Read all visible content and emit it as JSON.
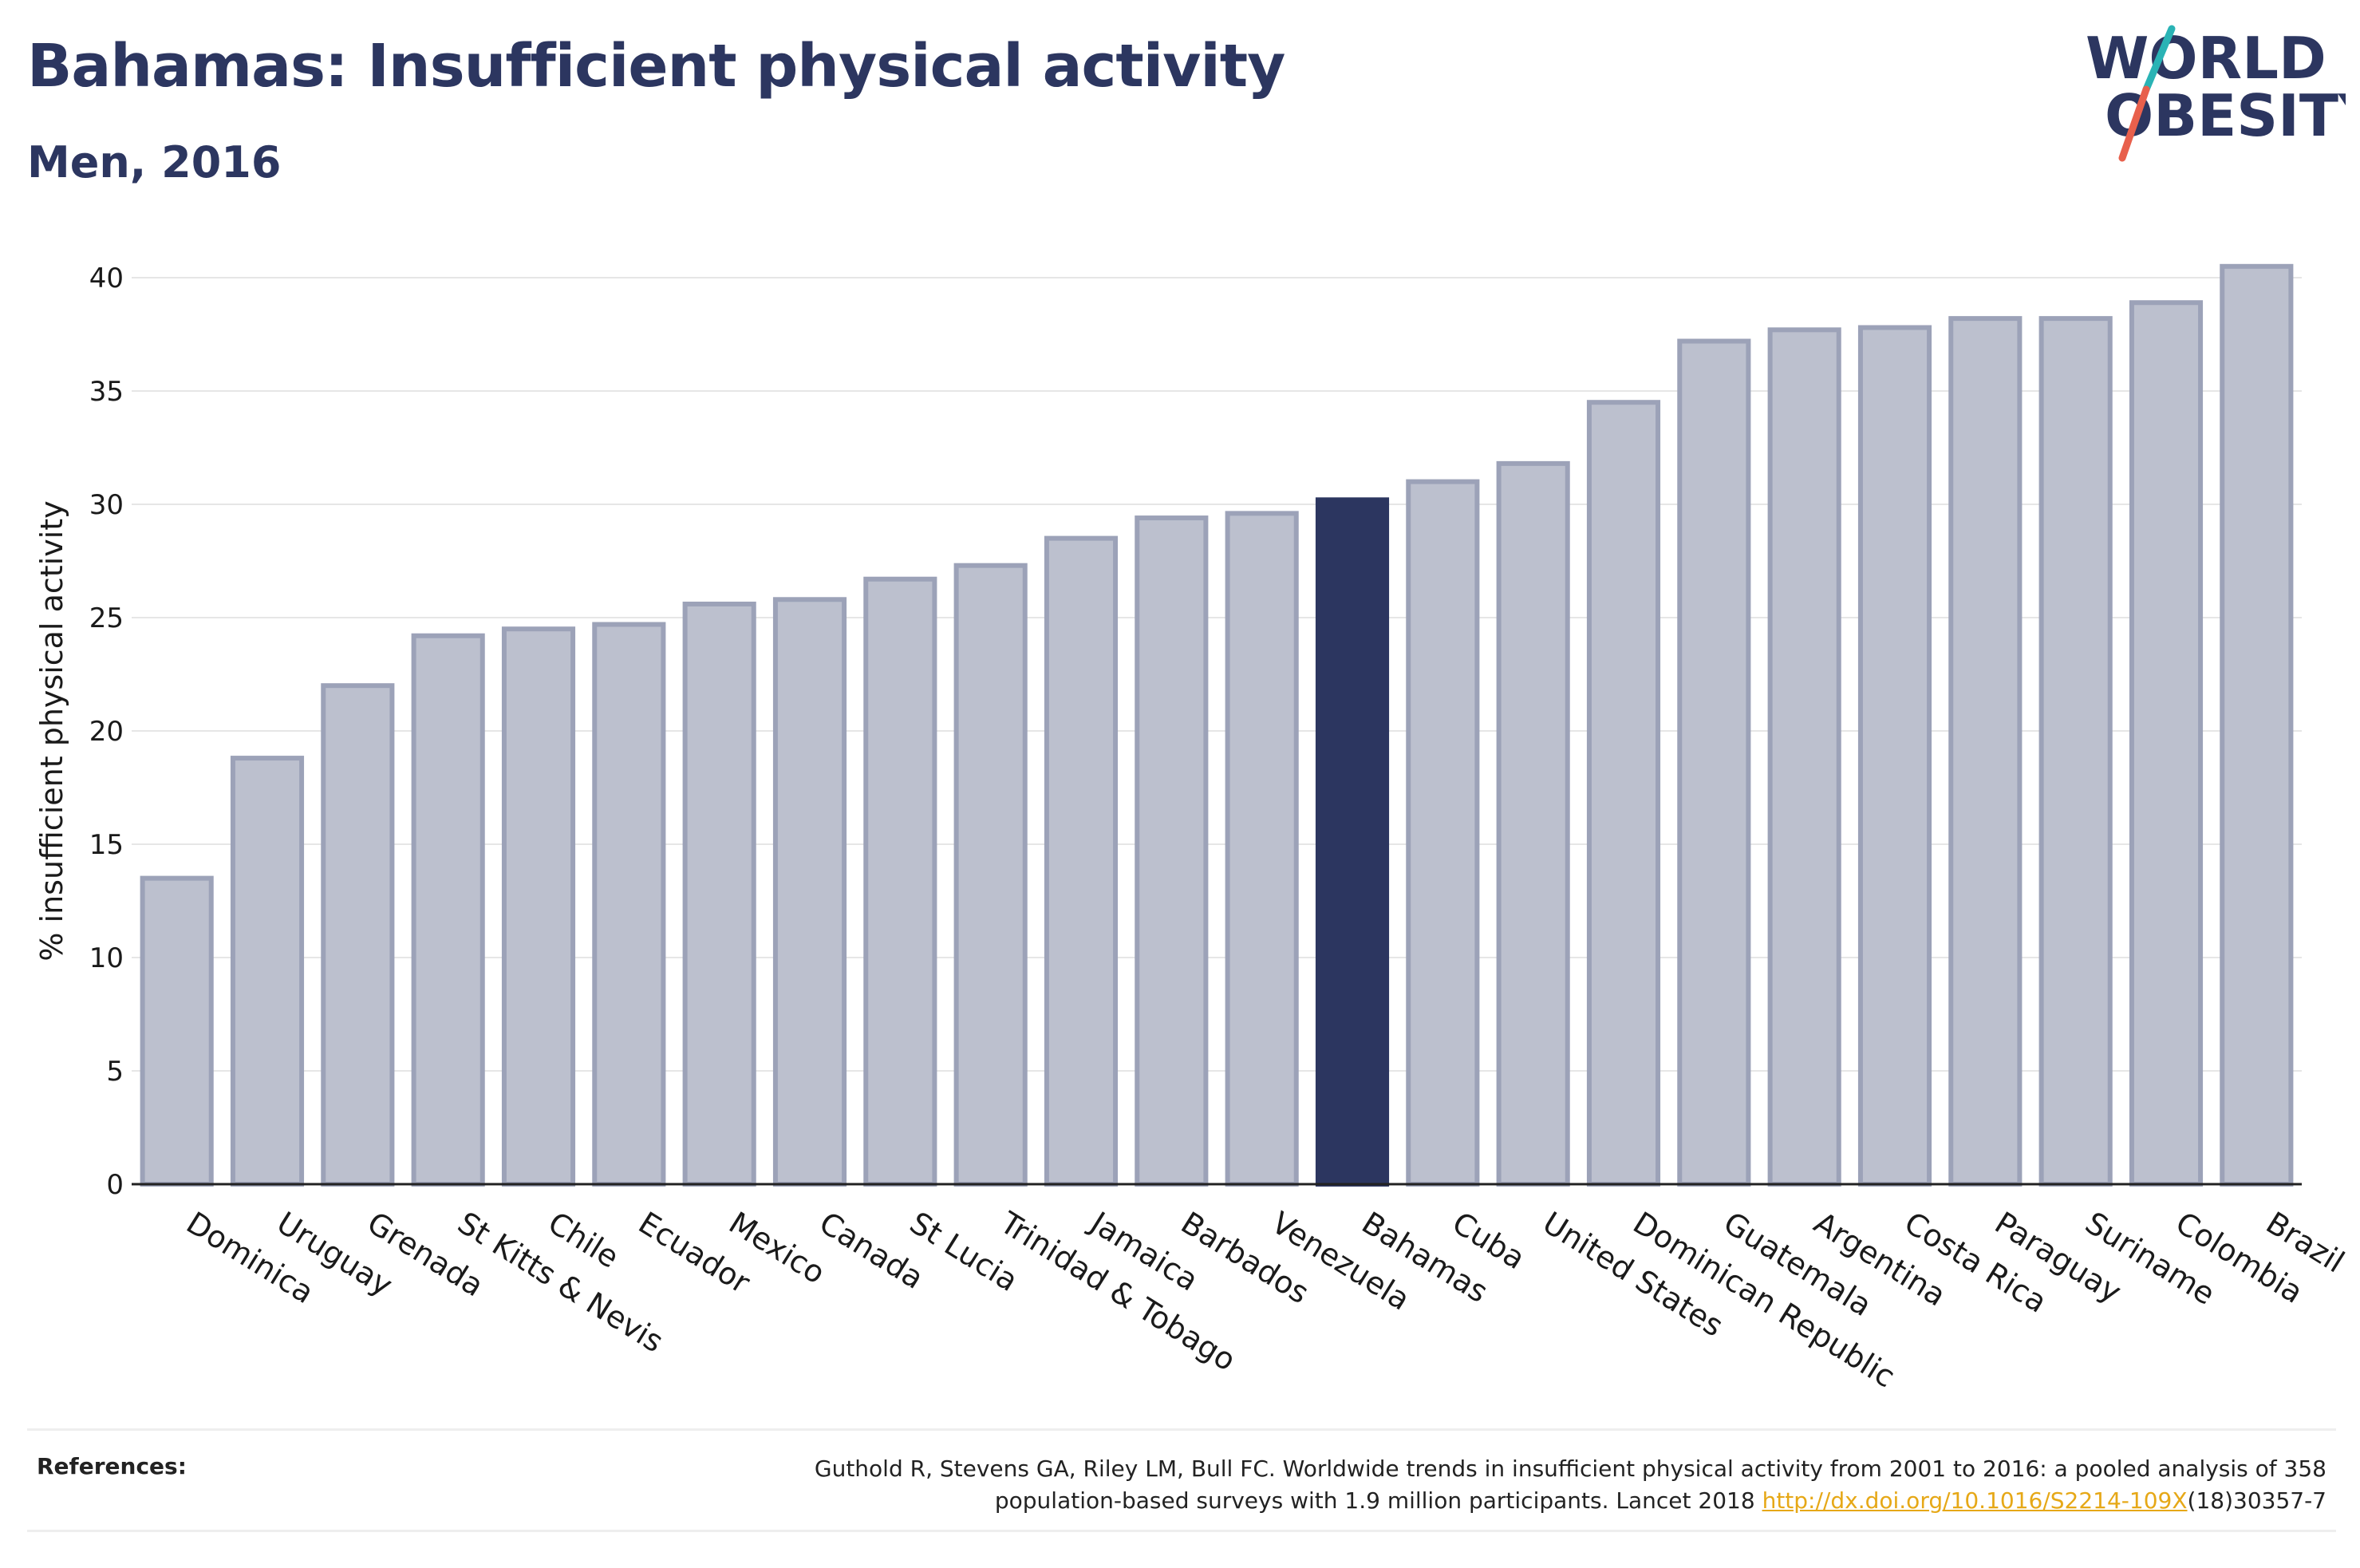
{
  "header": {
    "title": "Bahamas: Insufficient physical activity",
    "subtitle": "Men, 2016"
  },
  "logo": {
    "line1": "WORLD",
    "line2": "OBESITY",
    "colors": {
      "text": "#2c3660",
      "slash_top": "#2ab3b5",
      "slash_bottom": "#e8604c"
    }
  },
  "chart_data": {
    "type": "bar",
    "title": "Bahamas: Insufficient physical activity",
    "subtitle": "Men, 2016",
    "xlabel": "",
    "ylabel": "% insufficient physical activity",
    "ylim": [
      0,
      40
    ],
    "yticks": [
      0,
      5,
      10,
      15,
      20,
      25,
      30,
      35,
      40
    ],
    "grid": true,
    "highlight": "Bahamas",
    "colors": {
      "bar": "#bcc0ce",
      "bar_edge": "#9ca2b8",
      "highlight": "#2c3660"
    },
    "categories": [
      "Dominica",
      "Uruguay",
      "Grenada",
      "St Kitts & Nevis",
      "Chile",
      "Ecuador",
      "Mexico",
      "Canada",
      "St Lucia",
      "Trinidad & Tobago",
      "Jamaica",
      "Barbados",
      "Venezuela",
      "Bahamas",
      "Cuba",
      "United States",
      "Dominican Republic",
      "Guatemala",
      "Argentina",
      "Costa Rica",
      "Paraguay",
      "Suriname",
      "Colombia",
      "Brazil"
    ],
    "values": [
      13.5,
      18.8,
      22.0,
      24.2,
      24.5,
      24.7,
      25.6,
      25.8,
      26.7,
      27.3,
      28.5,
      29.4,
      29.6,
      30.2,
      31.0,
      31.8,
      34.5,
      37.2,
      37.7,
      37.8,
      38.2,
      38.2,
      38.9,
      40.5
    ]
  },
  "references": {
    "label": "References:",
    "line1": "Guthold R, Stevens GA, Riley LM, Bull FC. Worldwide trends in insufficient physical activity from 2001 to 2016: a pooled analysis of 358",
    "line2_prefix": "population-based surveys with 1.9 million participants. Lancet 2018 ",
    "link_text": "http://dx.doi.org/10.1016/S2214-109X",
    "line2_suffix": "(18)30357-7"
  }
}
